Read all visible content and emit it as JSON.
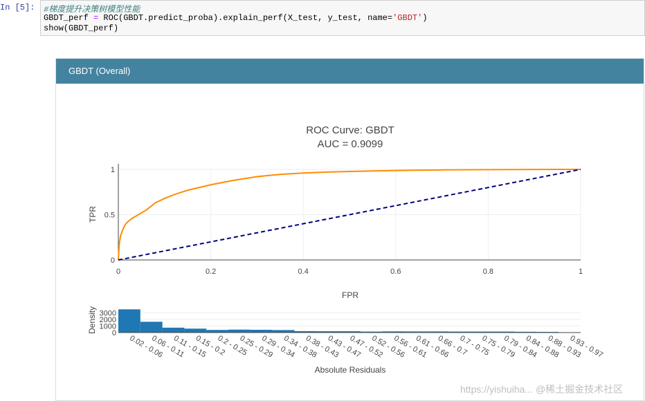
{
  "notebook": {
    "prompt": "In [5]:",
    "code_comment": "#梯度提升决策树模型性能",
    "code_line2_a": "GBDT_perf ",
    "code_line2_op": "=",
    "code_line2_b": " ROC(GBDT.predict_proba).explain_perf(X_test, y_test, name=",
    "code_line2_str": "'GBDT'",
    "code_line2_c": ")",
    "code_line3": "show(GBDT_perf)"
  },
  "panel": {
    "title": "GBDT (Overall)"
  },
  "chart_data": [
    {
      "type": "line",
      "title": "ROC Curve: GBDT",
      "subtitle": "AUC = 0.9099",
      "xlabel": "FPR",
      "ylabel": "TPR",
      "xlim": [
        0,
        1
      ],
      "ylim": [
        0,
        1
      ],
      "x_ticks": [
        "0",
        "0.2",
        "0.4",
        "0.6",
        "0.8",
        "1"
      ],
      "y_ticks": [
        "0",
        "0.5",
        "1"
      ],
      "grid": true,
      "series": [
        {
          "color": "#ff8c00",
          "x": [
            0,
            0.002,
            0.005,
            0.01,
            0.015,
            0.02,
            0.03,
            0.04,
            0.05,
            0.06,
            0.08,
            0.1,
            0.12,
            0.15,
            0.2,
            0.25,
            0.3,
            0.35,
            0.4,
            0.45,
            0.5,
            0.55,
            0.6,
            0.65,
            0.7,
            0.75,
            0.8,
            0.85,
            0.9,
            0.95,
            1
          ],
          "y": [
            0,
            0.18,
            0.27,
            0.34,
            0.39,
            0.42,
            0.46,
            0.49,
            0.52,
            0.55,
            0.63,
            0.68,
            0.72,
            0.77,
            0.83,
            0.88,
            0.92,
            0.945,
            0.96,
            0.97,
            0.977,
            0.983,
            0.988,
            0.991,
            0.994,
            0.996,
            0.997,
            0.998,
            0.999,
            1.0,
            1.0
          ]
        },
        {
          "color": "#000080",
          "dash": true,
          "x": [
            0,
            1
          ],
          "y": [
            0,
            1
          ]
        }
      ]
    },
    {
      "type": "bar",
      "xlabel": "Absolute Residuals",
      "ylabel": "Density",
      "y_ticks": [
        "0",
        "1000",
        "2000",
        "3000"
      ],
      "ylim": [
        0,
        3700
      ],
      "color": "#1f77b4",
      "categories": [
        "0.02 - 0.06",
        "0.06 - 0.11",
        "0.11 - 0.15",
        "0.15 - 0.2",
        "0.2 - 0.25",
        "0.25 - 0.29",
        "0.29 - 0.34",
        "0.34 - 0.38",
        "0.38 - 0.43",
        "0.43 - 0.47",
        "0.47 - 0.52",
        "0.52 - 0.56",
        "0.56 - 0.61",
        "0.61 - 0.66",
        "0.66 - 0.7",
        "0.7 - 0.75",
        "0.75 - 0.79",
        "0.79 - 0.84",
        "0.84 - 0.88",
        "0.88 - 0.93",
        "0.93 - 0.97"
      ],
      "values": [
        3550,
        1650,
        750,
        600,
        400,
        450,
        420,
        380,
        220,
        200,
        200,
        150,
        180,
        170,
        170,
        150,
        150,
        150,
        120,
        100,
        50
      ]
    }
  ],
  "watermark": "https://yishuiha... @稀土掘金技术社区"
}
